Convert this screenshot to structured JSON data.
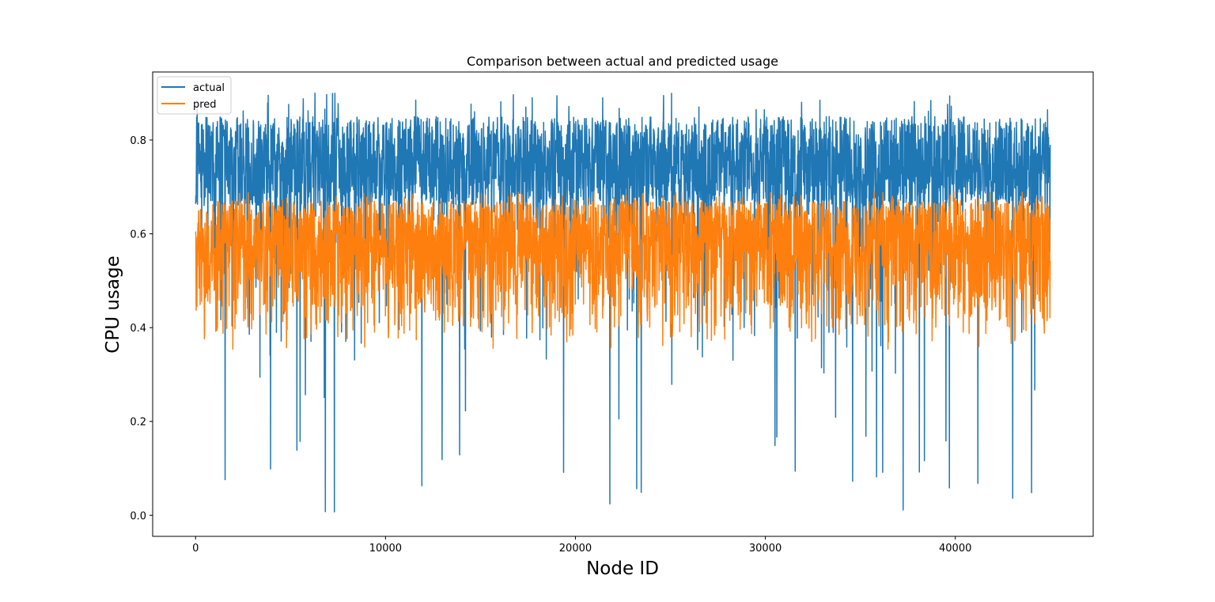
{
  "chart_data": {
    "type": "line",
    "title": "Comparison between actual and predicted usage",
    "xlabel": "Node ID",
    "ylabel": "CPU usage",
    "xlim": [
      -2260,
      47260
    ],
    "ylim": [
      -0.045,
      0.945
    ],
    "xticks": [
      0,
      10000,
      20000,
      30000,
      40000
    ],
    "yticks": [
      0.0,
      0.2,
      0.4,
      0.6,
      0.8
    ],
    "xtick_labels": [
      "0",
      "10000",
      "20000",
      "30000",
      "40000"
    ],
    "ytick_labels": [
      "0.0",
      "0.2",
      "0.4",
      "0.6",
      "0.8"
    ],
    "grid": false,
    "legend_position": "upper-left",
    "n_points": 45000,
    "series": [
      {
        "name": "actual",
        "color": "#1f77b4",
        "summary": {
          "typical_min": 0.66,
          "typical_max": 0.85,
          "max": 0.9,
          "min": 0.0,
          "frequent_dips_to": [
            0.35,
            0.0
          ]
        }
      },
      {
        "name": "pred",
        "color": "#ff7f0e",
        "summary": {
          "typical_min": 0.35,
          "typical_max": 0.67,
          "max": 0.69,
          "min": 0.34
        }
      }
    ]
  }
}
